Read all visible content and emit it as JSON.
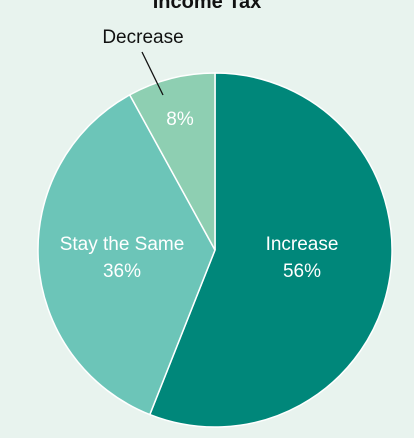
{
  "chart_data": {
    "type": "pie",
    "title": "Income Tax",
    "slices": [
      {
        "label": "Increase",
        "value": 56,
        "display": "56%",
        "color": "#00877a"
      },
      {
        "label": "Stay the Same",
        "value": 36,
        "display": "36%",
        "color": "#6cc5b8"
      },
      {
        "label": "Decrease",
        "value": 8,
        "display": "8%",
        "color": "#8ecfb2"
      }
    ]
  }
}
